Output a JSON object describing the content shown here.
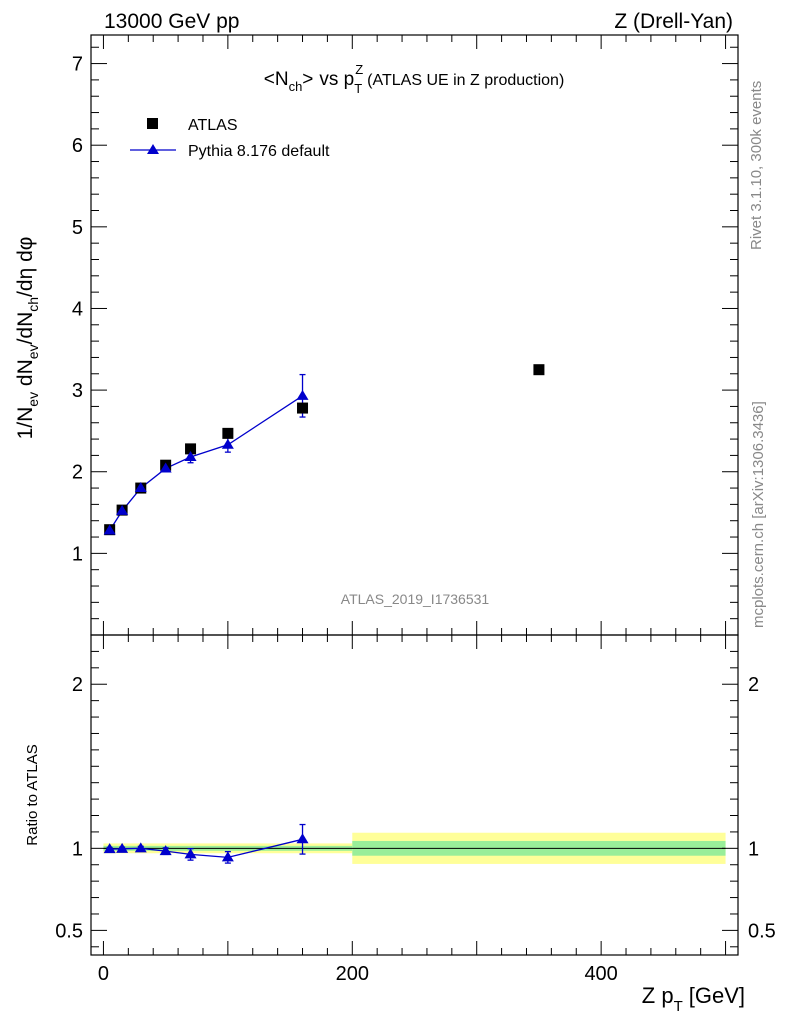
{
  "header": {
    "left": "13000 GeV pp",
    "right": "Z (Drell-Yan)"
  },
  "side_labels": {
    "rivet": "Rivet 3.1.10,  300k events",
    "mcplots": "mcplots.cern.ch [arXiv:1306.3436]"
  },
  "watermark": "ATLAS_2019_I1736531",
  "chart_data": [
    {
      "type": "scatter",
      "title": "<N_ch> vs p_T^Z (ATLAS UE in Z production)",
      "title_parts": {
        "n": "N",
        "n_sub": "ch",
        "vs": "vs p",
        "p_sup": "Z",
        "p_sub": "T",
        "suffix": "(ATLAS UE in Z production)",
        "open": "<",
        "close": ">"
      },
      "ylabel": "1/N_ev dN_ev/dN_ch/dη dφ",
      "xlim": [
        -10,
        510
      ],
      "ylim": [
        0,
        7.35
      ],
      "yticks": [
        1,
        2,
        3,
        4,
        5,
        6,
        7
      ],
      "ytick_labels": [
        "1",
        "2",
        "3",
        "4",
        "5",
        "6",
        "7"
      ],
      "legend_position": "top-left",
      "series": [
        {
          "name": "ATLAS",
          "marker": "square",
          "color": "#000000",
          "x": [
            5,
            15,
            30,
            50,
            70,
            100,
            160,
            350
          ],
          "y": [
            1.29,
            1.53,
            1.8,
            2.08,
            2.28,
            2.47,
            2.78,
            3.25
          ]
        },
        {
          "name": "Pythia 8.176 default",
          "marker": "triangle",
          "color": "#0000cc",
          "x": [
            5,
            15,
            30,
            50,
            70,
            100,
            160
          ],
          "y": [
            1.28,
            1.52,
            1.8,
            2.04,
            2.18,
            2.33,
            2.93
          ],
          "yerr": [
            0.02,
            0.02,
            0.02,
            0.04,
            0.07,
            0.09,
            0.26
          ]
        }
      ]
    },
    {
      "type": "line",
      "ylabel": "Ratio to ATLAS",
      "xlabel": "Z p_T [GeV]",
      "xlabel_parts": {
        "a": "Z p",
        "sub": "T",
        "b": "[GeV]"
      },
      "xlim": [
        -10,
        510
      ],
      "ylim": [
        0.35,
        2.3
      ],
      "xticks": [
        0,
        200,
        400
      ],
      "xtick_labels": [
        "0",
        "200",
        "400"
      ],
      "yticks": [
        0.5,
        1,
        2
      ],
      "ytick_labels": [
        "0.5",
        "1",
        "2"
      ],
      "bands": [
        {
          "x0": 0,
          "x1": 200,
          "yellow": [
            0.97,
            1.03
          ],
          "green": [
            0.985,
            1.015
          ]
        },
        {
          "x0": 200,
          "x1": 500,
          "yellow": [
            0.905,
            1.095
          ],
          "green": [
            0.955,
            1.045
          ]
        }
      ],
      "band_colors": {
        "yellow": "#ffff99",
        "green": "#99ee99"
      },
      "series": [
        {
          "name": "Pythia 8.176 default",
          "color": "#0000cc",
          "x": [
            5,
            15,
            30,
            50,
            70,
            100,
            160
          ],
          "y": [
            0.995,
            0.997,
            1.0,
            0.983,
            0.963,
            0.945,
            1.055
          ],
          "yerr": [
            0.01,
            0.01,
            0.012,
            0.02,
            0.035,
            0.035,
            0.09
          ]
        }
      ]
    }
  ]
}
